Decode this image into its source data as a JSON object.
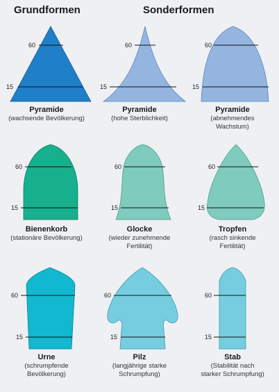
{
  "headers": {
    "left": "Grundformen",
    "right": "Sonderformen"
  },
  "colors": {
    "dark_blue": "#1f7fc8",
    "light_blue": "#94b5e0",
    "dark_green": "#17b08c",
    "light_green": "#7fcbbd",
    "cyan": "#12b8cf",
    "light_cyan": "#76cde0"
  },
  "tick_labels": {
    "upper": "60",
    "lower": "15"
  },
  "shapes": [
    {
      "name": "Pyramide",
      "subtitle": "(wachsende Bevölkerung)",
      "color": "#1f7fc8"
    },
    {
      "name": "Pyramide",
      "subtitle": "(hohe Sterblichkeit)",
      "color": "#94b5e0"
    },
    {
      "name": "Pyramide",
      "subtitle": "(abnehmendes\nWachstum)",
      "color": "#94b5e0"
    },
    {
      "name": "Bienenkorb",
      "subtitle": "(stationäre Bevölkerung)",
      "color": "#17b08c"
    },
    {
      "name": "Glocke",
      "subtitle": "(wieder zunehmende\nFertilität)",
      "color": "#7fcbbd"
    },
    {
      "name": "Tropfen",
      "subtitle": "(rasch sinkende\nFertilität)",
      "color": "#7fcbbd"
    },
    {
      "name": "Urne",
      "subtitle": "(schrumpfende\nBevölkerung)",
      "color": "#12b8cf"
    },
    {
      "name": "Pilz",
      "subtitle": "(langjährige starke\nSchrumpfung)",
      "color": "#76cde0"
    },
    {
      "name": "Stab",
      "subtitle": "(Stabilität nach\nstarker Schrumpfung)",
      "color": "#76cde0"
    }
  ]
}
